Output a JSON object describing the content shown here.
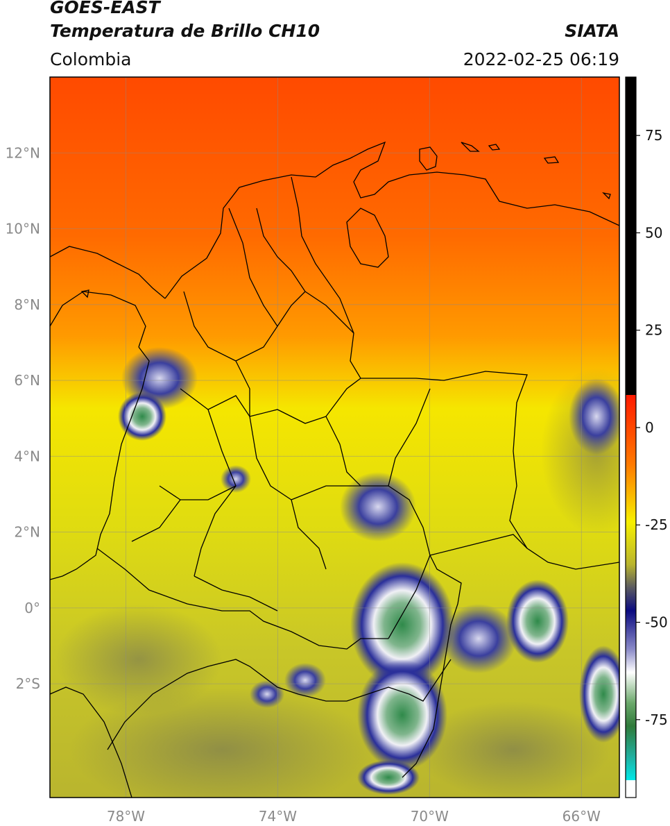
{
  "header": {
    "satellite": "GOES-EAST",
    "product": "Temperatura de Brillo CH10",
    "brand": "SIATA",
    "region": "Colombia",
    "datetime": "2022-02-25 06:19"
  },
  "map": {
    "lon_range": [
      -80,
      -65
    ],
    "lat_range": [
      -5,
      14
    ],
    "lat_ticks": [
      {
        "value": 12,
        "label": "12°N"
      },
      {
        "value": 10,
        "label": "10°N"
      },
      {
        "value": 8,
        "label": "8°N"
      },
      {
        "value": 6,
        "label": "6°N"
      },
      {
        "value": 4,
        "label": "4°N"
      },
      {
        "value": 2,
        "label": "2°N"
      },
      {
        "value": 0,
        "label": "0°"
      },
      {
        "value": -2,
        "label": "2°S"
      }
    ],
    "lon_ticks": [
      {
        "value": -78,
        "label": "78°W"
      },
      {
        "value": -74,
        "label": "74°W"
      },
      {
        "value": -70,
        "label": "70°W"
      },
      {
        "value": -66,
        "label": "66°W"
      }
    ],
    "grid": true
  },
  "colorbar": {
    "range": [
      -95,
      90
    ],
    "ticks": [
      {
        "value": 75,
        "label": "75"
      },
      {
        "value": 50,
        "label": "50"
      },
      {
        "value": 25,
        "label": "25"
      },
      {
        "value": 0,
        "label": "0"
      },
      {
        "value": -25,
        "label": "-25"
      },
      {
        "value": -50,
        "label": "-50"
      },
      {
        "value": -75,
        "label": "-75"
      }
    ],
    "colors": {
      "warm_top": "#000000",
      "red": "#ff2200",
      "orange": "#ff8c00",
      "yellow": "#f5f000",
      "olive": "#bdbd2e",
      "gray": "#555566",
      "navy": "#10108a",
      "white": "#ffffff",
      "green": "#2f8a2f",
      "cyan": "#00e5e5"
    }
  }
}
